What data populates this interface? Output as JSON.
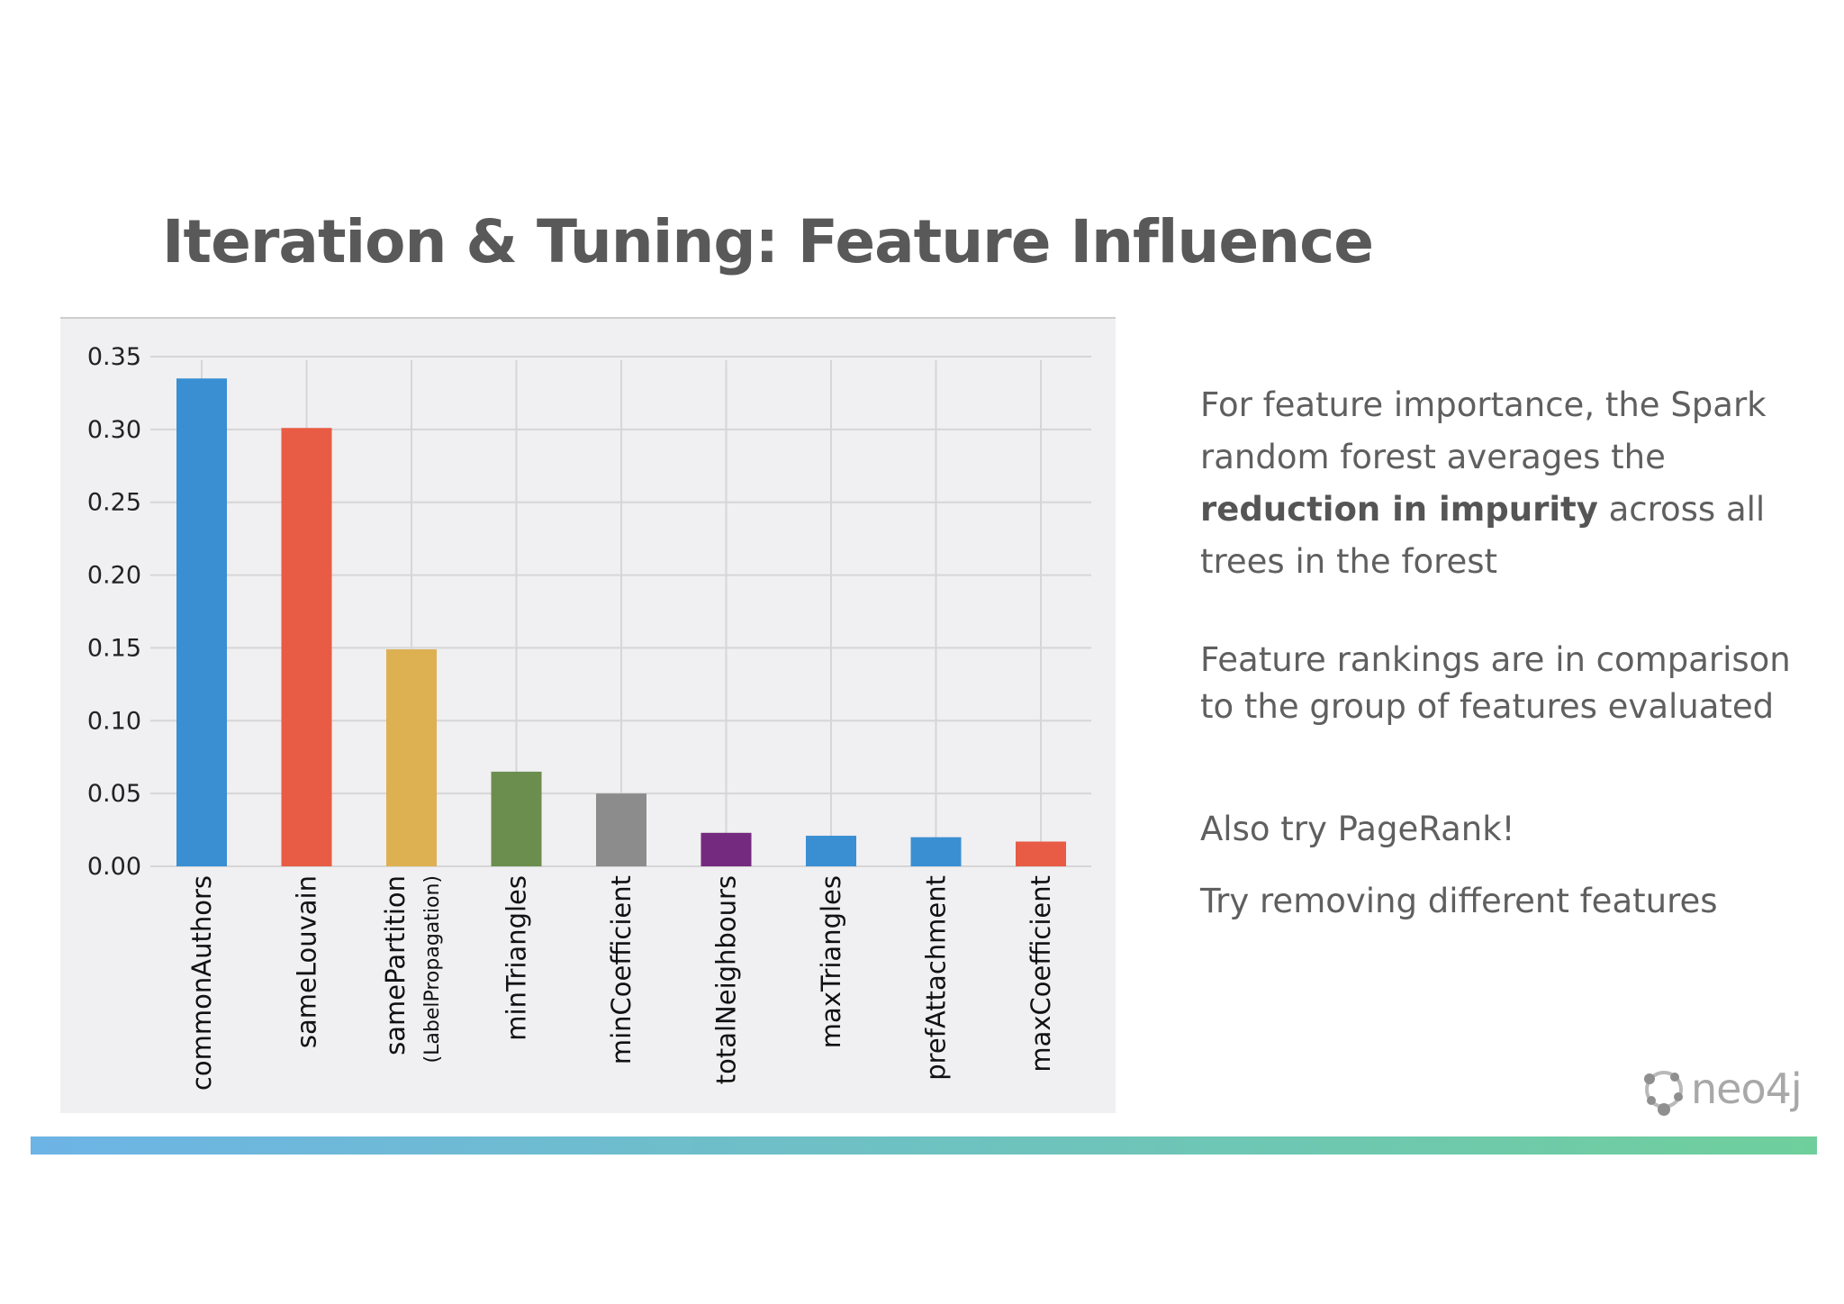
{
  "slide": {
    "title": "Iteration & Tuning: Feature Influence"
  },
  "notes": {
    "para1_a": "For feature importance, the Spark random forest averages the",
    "para1_bold": "reduction in impurity",
    "para1_b": "across all trees in the forest",
    "para2": "Feature rankings are in comparison to the group of features evaluated",
    "para3": "Also try PageRank!",
    "para4": "Try removing different features"
  },
  "logo": {
    "text": "neo4j",
    "icon": "neo4j-graph-icon"
  },
  "colors": {
    "blue": "#3a8fd3",
    "red": "#e85b44",
    "yellow": "#ddb052",
    "green": "#6b8e4e",
    "gray": "#8c8c8c",
    "purple": "#742a7e",
    "panel": "#f0eff1",
    "grid": "#d6d6d6"
  },
  "chart_data": {
    "type": "bar",
    "title": "",
    "xlabel": "",
    "ylabel": "",
    "ylim": [
      0,
      0.35
    ],
    "yticks": [
      "0.00",
      "0.05",
      "0.10",
      "0.15",
      "0.20",
      "0.25",
      "0.30",
      "0.35"
    ],
    "categories": [
      "commonAuthors",
      "sameLouvain",
      "samePartition",
      "minTriangles",
      "minCoefficient",
      "totalNeighbours",
      "maxTriangles",
      "prefAttachment",
      "maxCoefficient"
    ],
    "category_sublabels": [
      "",
      "",
      "(LabelPropagation)",
      "",
      "",
      "",
      "",
      "",
      ""
    ],
    "values": [
      0.335,
      0.301,
      0.149,
      0.065,
      0.05,
      0.023,
      0.021,
      0.02,
      0.017
    ],
    "bar_colors": [
      "#3a8fd3",
      "#e85b44",
      "#ddb052",
      "#6b8e4e",
      "#8c8c8c",
      "#742a7e",
      "#3a8fd3",
      "#3a8fd3",
      "#e85b44"
    ],
    "grid": true,
    "legend": "none"
  }
}
